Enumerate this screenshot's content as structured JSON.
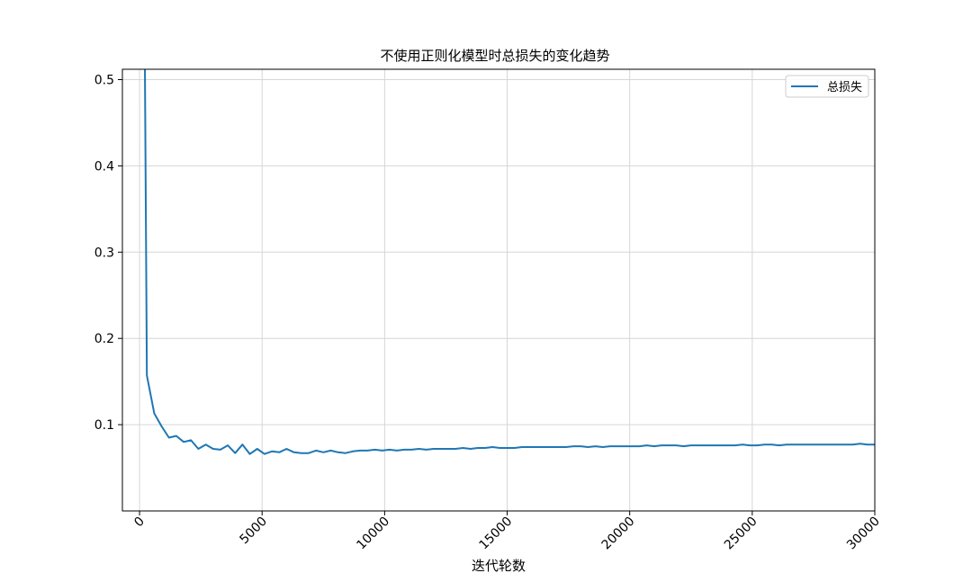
{
  "chart_data": {
    "type": "line",
    "title": "不使用正则化模型时总损失的变化趋势",
    "xlabel": "迭代轮数",
    "ylabel": "",
    "xlim": [
      -700,
      30000
    ],
    "ylim": [
      0.0,
      0.512
    ],
    "x_ticks": [
      0,
      5000,
      10000,
      15000,
      20000,
      25000,
      30000
    ],
    "x_tick_labels": [
      "0",
      "5000",
      "10000",
      "15000",
      "20000",
      "25000",
      "30000"
    ],
    "y_ticks": [
      0.1,
      0.2,
      0.3,
      0.4,
      0.5
    ],
    "y_tick_labels": [
      "0.1",
      "0.2",
      "0.3",
      "0.4",
      "0.5"
    ],
    "grid": true,
    "legend": {
      "position": "top-right",
      "color": "#1f77b4"
    },
    "series": [
      {
        "name": "总损失",
        "color": "#1f77b4",
        "x": [
          200,
          300,
          600,
          900,
          1200,
          1500,
          1800,
          2100,
          2400,
          2700,
          3000,
          3300,
          3600,
          3900,
          4200,
          4500,
          4800,
          5100,
          5400,
          5700,
          6000,
          6300,
          6600,
          6900,
          7200,
          7500,
          7800,
          8100,
          8400,
          8700,
          9000,
          9300,
          9600,
          9900,
          10200,
          10500,
          10800,
          11100,
          11400,
          11700,
          12000,
          12300,
          12600,
          12900,
          13200,
          13500,
          13800,
          14100,
          14400,
          14700,
          15000,
          15300,
          15600,
          15900,
          16200,
          16500,
          16800,
          17100,
          17400,
          17700,
          18000,
          18300,
          18600,
          18900,
          19200,
          19500,
          19800,
          20100,
          20400,
          20700,
          21000,
          21300,
          21600,
          21900,
          22200,
          22500,
          22800,
          23100,
          23400,
          23700,
          24000,
          24300,
          24600,
          24900,
          25200,
          25500,
          25800,
          26100,
          26400,
          26700,
          27000,
          27300,
          27600,
          27900,
          28200,
          28500,
          28800,
          29100,
          29400,
          29700,
          30000
        ],
        "values": [
          0.6,
          0.157,
          0.113,
          0.098,
          0.085,
          0.087,
          0.08,
          0.082,
          0.072,
          0.077,
          0.072,
          0.071,
          0.076,
          0.067,
          0.077,
          0.066,
          0.072,
          0.066,
          0.069,
          0.068,
          0.072,
          0.068,
          0.067,
          0.067,
          0.07,
          0.068,
          0.07,
          0.068,
          0.067,
          0.069,
          0.07,
          0.07,
          0.071,
          0.07,
          0.071,
          0.07,
          0.071,
          0.071,
          0.072,
          0.071,
          0.072,
          0.072,
          0.072,
          0.072,
          0.073,
          0.072,
          0.073,
          0.073,
          0.074,
          0.073,
          0.073,
          0.073,
          0.074,
          0.074,
          0.074,
          0.074,
          0.074,
          0.074,
          0.074,
          0.075,
          0.075,
          0.074,
          0.075,
          0.074,
          0.075,
          0.075,
          0.075,
          0.075,
          0.075,
          0.076,
          0.075,
          0.076,
          0.076,
          0.076,
          0.075,
          0.076,
          0.076,
          0.076,
          0.076,
          0.076,
          0.076,
          0.076,
          0.077,
          0.076,
          0.076,
          0.077,
          0.077,
          0.076,
          0.077,
          0.077,
          0.077,
          0.077,
          0.077,
          0.077,
          0.077,
          0.077,
          0.077,
          0.077,
          0.078,
          0.077,
          0.077
        ]
      }
    ]
  }
}
